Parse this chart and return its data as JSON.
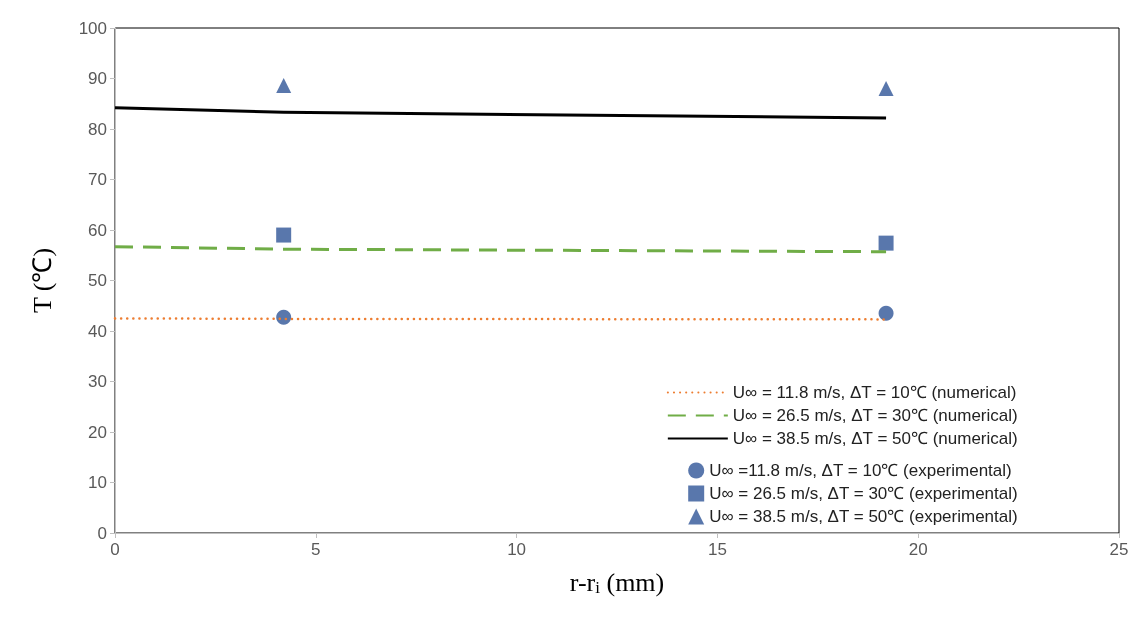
{
  "chart_data": {
    "type": "line",
    "xlabel": "r-r$_{i}$ (mm)",
    "ylabel": "T (℃)",
    "xlim": [
      0,
      25
    ],
    "xticks": [
      0,
      5,
      10,
      15,
      20,
      25
    ],
    "ylim": [
      0,
      100
    ],
    "yticks": [
      0,
      10,
      20,
      30,
      40,
      50,
      60,
      70,
      80,
      90,
      100
    ],
    "grid": false,
    "legend": "bottom right",
    "series": [
      {
        "name": "U∞ = 11.8 m/s, ΔT = 10℃ (numerical)",
        "color": "#ed7d31",
        "line_style": "dotted",
        "marker": "none",
        "x": [
          0,
          4.2,
          19.2
        ],
        "values": [
          42.5,
          42.4,
          42.3
        ]
      },
      {
        "name": "U∞ = 26.5 m/s, ΔT = 30℃ (numerical)",
        "color": "#70ad47",
        "line_style": "dashed",
        "marker": "none",
        "x": [
          0,
          4.2,
          19.2
        ],
        "values": [
          56.7,
          56.2,
          55.7
        ]
      },
      {
        "name": "U∞ = 38.5 m/s, ΔT = 50℃ (numerical)",
        "color": "#000000",
        "line_style": "solid",
        "marker": "none",
        "x": [
          0,
          4.2,
          19.2
        ],
        "values": [
          84.2,
          83.3,
          82.2
        ]
      },
      {
        "name": "U∞ =11.8 m/s, ΔT = 10℃ (experimental)",
        "type": "scatter",
        "color": "#2f5597",
        "marker": "circle",
        "x": [
          4.2,
          19.2
        ],
        "values": [
          42.7,
          43.5
        ]
      },
      {
        "name": "U∞ = 26.5 m/s, ΔT = 30℃ (experimental)",
        "type": "scatter",
        "color": "#2f5597",
        "marker": "square",
        "x": [
          4.2,
          19.2
        ],
        "values": [
          59.0,
          57.4
        ]
      },
      {
        "name": "U∞ = 38.5 m/s, ΔT = 50℃ (experimental)",
        "type": "scatter",
        "color": "#2f5597",
        "marker": "triangle",
        "x": [
          4.2,
          19.2
        ],
        "values": [
          88.6,
          88.0
        ]
      }
    ]
  }
}
